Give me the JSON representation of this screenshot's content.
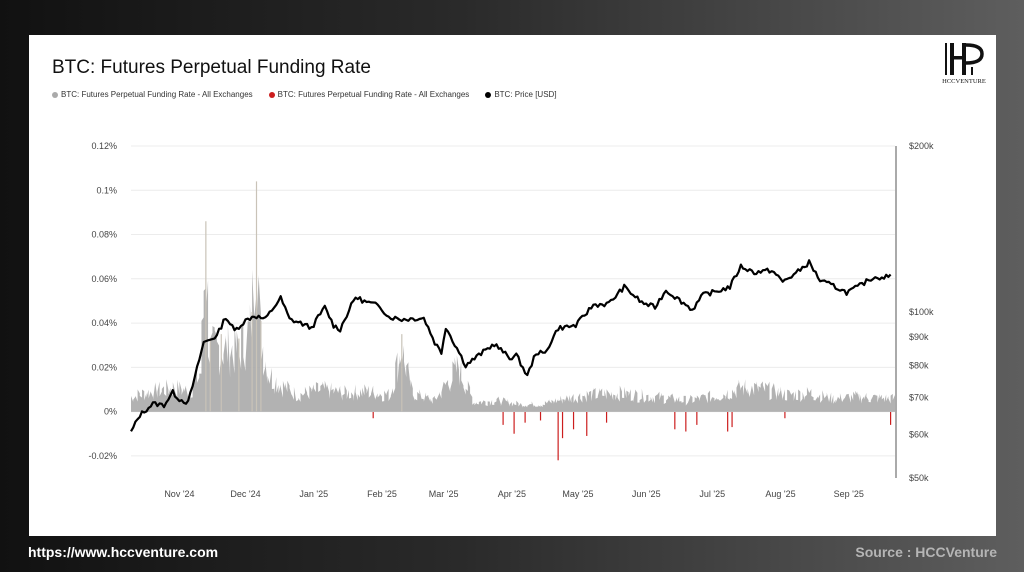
{
  "page": {
    "footer_url": "https://www.hccventure.com",
    "footer_source": "Source : HCCVenture"
  },
  "logo": {
    "text": "HCCVENTURE",
    "glyph": "H"
  },
  "chart_data": {
    "type": "line",
    "title": "BTC: Futures Perpetual Funding Rate",
    "legend": [
      {
        "label": "BTC: Futures Perpetual Funding Rate - All Exchanges",
        "color": "#aaaaaa"
      },
      {
        "label": "BTC: Futures Perpetual Funding Rate - All Exchanges",
        "color": "#cc1e1e"
      },
      {
        "label": "BTC: Price [USD]",
        "color": "#000000"
      }
    ],
    "x_range": [
      "2024-10-10",
      "2025-09-22"
    ],
    "x_ticks": [
      {
        "label": "Nov '24",
        "date": "2024-11-01"
      },
      {
        "label": "Dec '24",
        "date": "2024-12-01"
      },
      {
        "label": "Jan '25",
        "date": "2025-01-01"
      },
      {
        "label": "Feb '25",
        "date": "2025-02-01"
      },
      {
        "label": "Mar '25",
        "date": "2025-03-01"
      },
      {
        "label": "Apr '25",
        "date": "2025-04-01"
      },
      {
        "label": "May '25",
        "date": "2025-05-01"
      },
      {
        "label": "Jun '25",
        "date": "2025-06-01"
      },
      {
        "label": "Jul '25",
        "date": "2025-07-01"
      },
      {
        "label": "Aug '25",
        "date": "2025-08-01"
      },
      {
        "label": "Sep '25",
        "date": "2025-09-01"
      }
    ],
    "y_left": {
      "range": [
        -0.03,
        0.12
      ],
      "ticks": [
        {
          "value": 0.12,
          "label": "0.12%"
        },
        {
          "value": 0.1,
          "label": "0.1%"
        },
        {
          "value": 0.08,
          "label": "0.08%"
        },
        {
          "value": 0.06,
          "label": "0.06%"
        },
        {
          "value": 0.04,
          "label": "0.04%"
        },
        {
          "value": 0.02,
          "label": "0.02%"
        },
        {
          "value": 0,
          "label": "0%"
        },
        {
          "value": -0.02,
          "label": "-0.02%"
        }
      ]
    },
    "y_right": {
      "scale": "log",
      "range": [
        50000,
        200000
      ],
      "ticks": [
        {
          "value": 200000,
          "label": "$200k"
        },
        {
          "value": 100000,
          "label": "$100k"
        },
        {
          "value": 90000,
          "label": "$90k"
        },
        {
          "value": 80000,
          "label": "$80k"
        },
        {
          "value": 70000,
          "label": "$70k"
        },
        {
          "value": 60000,
          "label": "$60k"
        },
        {
          "value": 50000,
          "label": "$50k"
        }
      ]
    },
    "grid": "horizontal",
    "price_series": {
      "name": "BTC: Price [USD]",
      "color": "#000000",
      "points": [
        [
          "2024-10-10",
          60500
        ],
        [
          "2024-10-14",
          65000
        ],
        [
          "2024-10-20",
          68200
        ],
        [
          "2024-10-25",
          67800
        ],
        [
          "2024-10-29",
          71500
        ],
        [
          "2024-11-01",
          69500
        ],
        [
          "2024-11-05",
          68500
        ],
        [
          "2024-11-08",
          76000
        ],
        [
          "2024-11-12",
          88000
        ],
        [
          "2024-11-18",
          90500
        ],
        [
          "2024-11-22",
          98000
        ],
        [
          "2024-11-26",
          92500
        ],
        [
          "2024-12-01",
          96500
        ],
        [
          "2024-12-05",
          98500
        ],
        [
          "2024-12-10",
          97000
        ],
        [
          "2024-12-17",
          106000
        ],
        [
          "2024-12-21",
          97000
        ],
        [
          "2024-12-26",
          95500
        ],
        [
          "2024-12-31",
          93500
        ],
        [
          "2025-01-06",
          102000
        ],
        [
          "2025-01-10",
          94500
        ],
        [
          "2025-01-13",
          93000
        ],
        [
          "2025-01-20",
          106500
        ],
        [
          "2025-01-24",
          104500
        ],
        [
          "2025-01-31",
          102500
        ],
        [
          "2025-02-04",
          98000
        ],
        [
          "2025-02-10",
          97000
        ],
        [
          "2025-02-20",
          97500
        ],
        [
          "2025-02-25",
          88000
        ],
        [
          "2025-02-28",
          84500
        ],
        [
          "2025-03-02",
          94000
        ],
        [
          "2025-03-05",
          89000
        ],
        [
          "2025-03-11",
          80000
        ],
        [
          "2025-03-17",
          83500
        ],
        [
          "2025-03-24",
          87500
        ],
        [
          "2025-03-31",
          82500
        ],
        [
          "2025-04-03",
          83500
        ],
        [
          "2025-04-08",
          76500
        ],
        [
          "2025-04-12",
          84500
        ],
        [
          "2025-04-16",
          84000
        ],
        [
          "2025-04-22",
          93500
        ],
        [
          "2025-04-30",
          94500
        ],
        [
          "2025-05-08",
          103000
        ],
        [
          "2025-05-15",
          103500
        ],
        [
          "2025-05-22",
          111000
        ],
        [
          "2025-05-30",
          104000
        ],
        [
          "2025-06-05",
          102000
        ],
        [
          "2025-06-10",
          109500
        ],
        [
          "2025-06-17",
          104500
        ],
        [
          "2025-06-22",
          101000
        ],
        [
          "2025-06-27",
          107500
        ],
        [
          "2025-07-03",
          109000
        ],
        [
          "2025-07-09",
          111000
        ],
        [
          "2025-07-14",
          121000
        ],
        [
          "2025-07-20",
          118000
        ],
        [
          "2025-07-28",
          119000
        ],
        [
          "2025-08-02",
          113500
        ],
        [
          "2025-08-08",
          117500
        ],
        [
          "2025-08-14",
          123000
        ],
        [
          "2025-08-19",
          114000
        ],
        [
          "2025-08-25",
          111500
        ],
        [
          "2025-08-31",
          108500
        ],
        [
          "2025-09-05",
          111000
        ],
        [
          "2025-09-12",
          115500
        ],
        [
          "2025-09-20",
          116000
        ]
      ]
    },
    "funding_positive": {
      "name": "BTC: Futures Perpetual Funding Rate - All Exchanges",
      "color": "#aaaaaa",
      "points": [
        [
          "2024-10-10",
          0.008
        ],
        [
          "2024-10-20",
          0.011
        ],
        [
          "2024-10-30",
          0.013
        ],
        [
          "2024-11-06",
          0.011
        ],
        [
          "2024-11-11",
          0.022
        ],
        [
          "2024-11-13",
          0.086
        ],
        [
          "2024-11-15",
          0.032
        ],
        [
          "2024-11-20",
          0.035
        ],
        [
          "2024-11-28",
          0.033
        ],
        [
          "2024-12-04",
          0.045
        ],
        [
          "2024-12-06",
          0.104
        ],
        [
          "2024-12-08",
          0.041
        ],
        [
          "2024-12-12",
          0.02
        ],
        [
          "2024-12-18",
          0.014
        ],
        [
          "2024-12-25",
          0.009
        ],
        [
          "2025-01-05",
          0.012
        ],
        [
          "2025-01-15",
          0.01
        ],
        [
          "2025-01-25",
          0.011
        ],
        [
          "2025-02-05",
          0.009
        ],
        [
          "2025-02-10",
          0.035
        ],
        [
          "2025-02-15",
          0.01
        ],
        [
          "2025-02-25",
          0.006
        ],
        [
          "2025-03-08",
          0.024
        ],
        [
          "2025-03-15",
          0.005
        ],
        [
          "2025-03-25",
          0.006
        ],
        [
          "2025-04-05",
          0.004
        ],
        [
          "2025-04-15",
          0.004
        ],
        [
          "2025-04-25",
          0.007
        ],
        [
          "2025-05-05",
          0.009
        ],
        [
          "2025-05-20",
          0.01
        ],
        [
          "2025-06-05",
          0.008
        ],
        [
          "2025-06-20",
          0.006
        ],
        [
          "2025-07-05",
          0.009
        ],
        [
          "2025-07-15",
          0.013
        ],
        [
          "2025-07-25",
          0.012
        ],
        [
          "2025-08-05",
          0.009
        ],
        [
          "2025-08-15",
          0.01
        ],
        [
          "2025-08-25",
          0.007
        ],
        [
          "2025-09-05",
          0.008
        ],
        [
          "2025-09-20",
          0.007
        ]
      ]
    },
    "funding_negative": {
      "name": "BTC: Futures Perpetual Funding Rate - All Exchanges",
      "color": "#cc1e1e",
      "points": [
        [
          "2025-01-28",
          -0.003
        ],
        [
          "2025-03-28",
          -0.006
        ],
        [
          "2025-04-02",
          -0.01
        ],
        [
          "2025-04-07",
          -0.005
        ],
        [
          "2025-04-14",
          -0.004
        ],
        [
          "2025-04-22",
          -0.022
        ],
        [
          "2025-04-24",
          -0.012
        ],
        [
          "2025-04-29",
          -0.008
        ],
        [
          "2025-05-05",
          -0.011
        ],
        [
          "2025-05-14",
          -0.005
        ],
        [
          "2025-06-14",
          -0.008
        ],
        [
          "2025-06-19",
          -0.009
        ],
        [
          "2025-06-24",
          -0.006
        ],
        [
          "2025-07-08",
          -0.009
        ],
        [
          "2025-07-10",
          -0.007
        ],
        [
          "2025-08-03",
          -0.003
        ],
        [
          "2025-09-20",
          -0.006
        ]
      ]
    }
  }
}
